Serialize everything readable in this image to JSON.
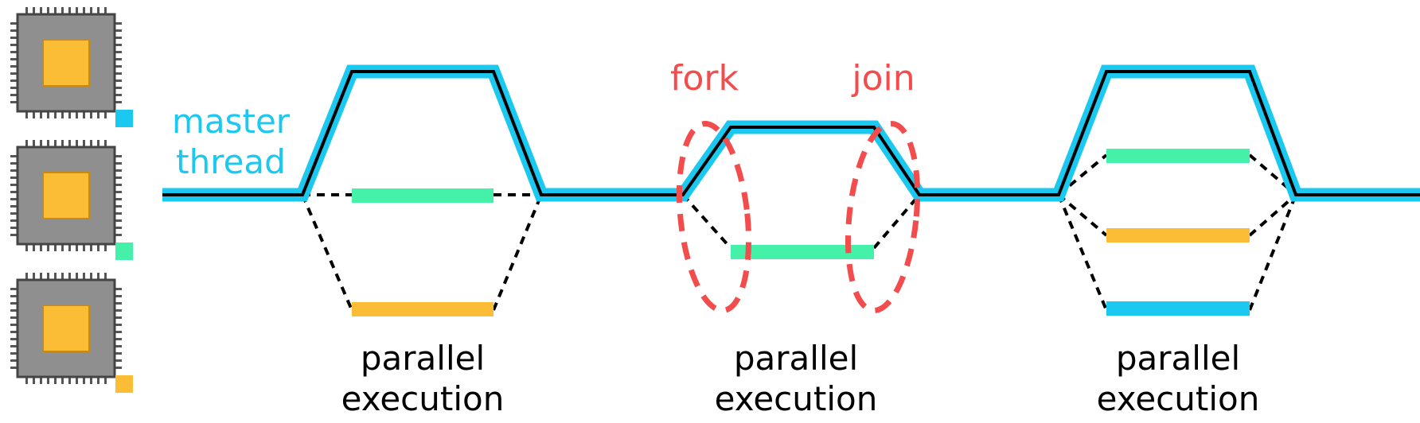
{
  "colors": {
    "cyan": "#1ac8f0",
    "green": "#45f0a8",
    "orange": "#fbbd35",
    "red": "#f24c4c",
    "line": "#000000",
    "chip_body": "#8f8f8f",
    "chip_die": "#fbbd35"
  },
  "cores": [
    {
      "name": "core-1",
      "indicator_color": "#1ac8f0"
    },
    {
      "name": "core-2",
      "indicator_color": "#45f0a8"
    },
    {
      "name": "core-3",
      "indicator_color": "#fbbd35"
    }
  ],
  "labels": {
    "master_thread_line1": "master",
    "master_thread_line2": "thread",
    "fork": "fork",
    "join": "join"
  },
  "regions": [
    {
      "line1": "parallel",
      "line2": "execution",
      "worker_threads": 3
    },
    {
      "line1": "parallel",
      "line2": "execution",
      "worker_threads": 2
    },
    {
      "line1": "parallel",
      "line2": "execution",
      "worker_threads": 4
    }
  ]
}
